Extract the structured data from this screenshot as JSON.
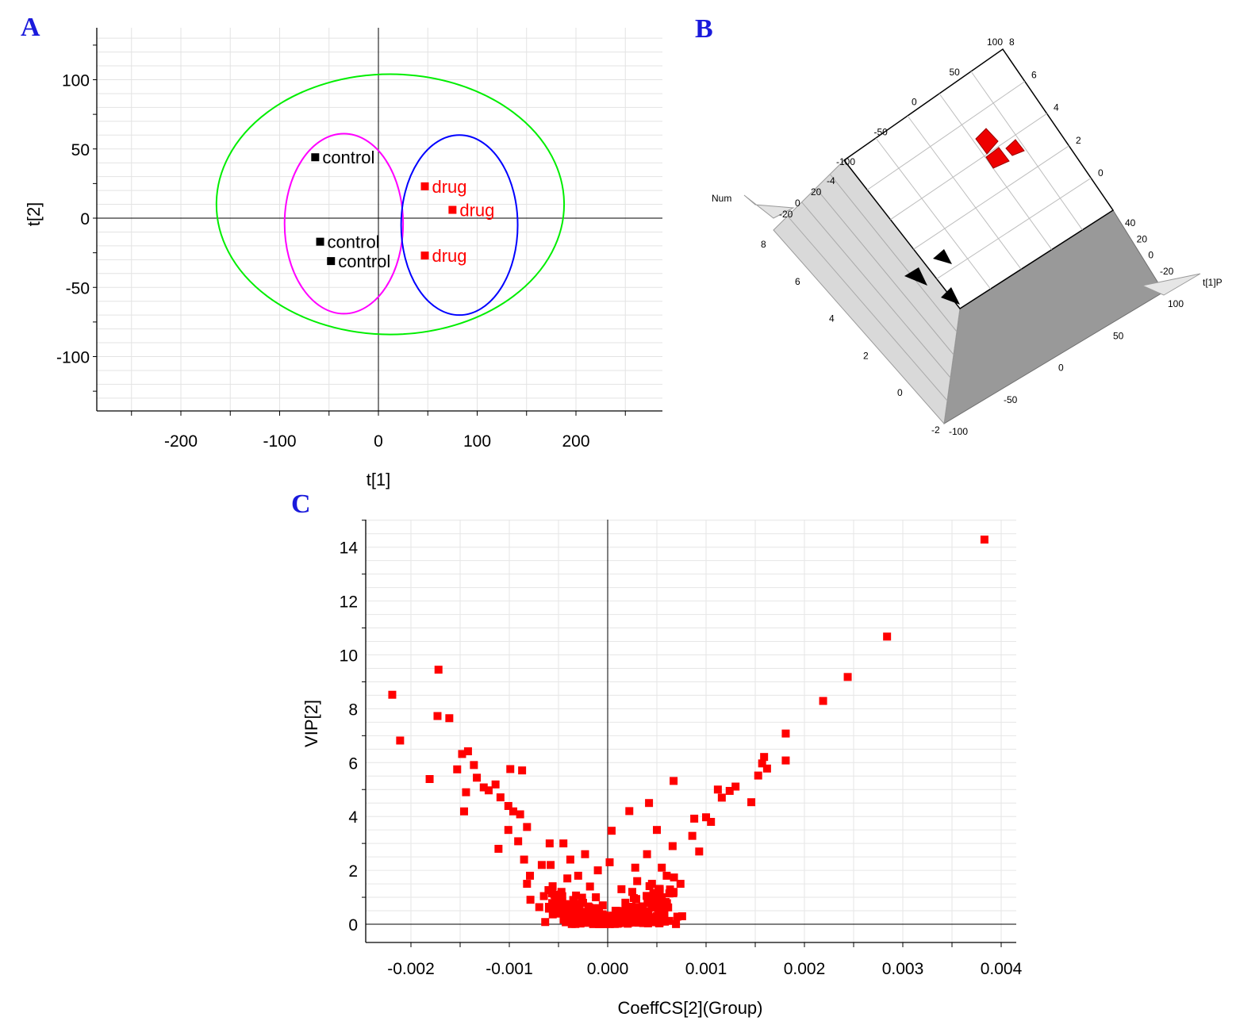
{
  "panels": {
    "a": "A",
    "b": "B",
    "c": "C"
  },
  "chart_data": [
    {
      "panel": "A",
      "type": "scatter",
      "xlabel": "t[1]",
      "ylabel": "t[2]",
      "xlim": [
        -290,
        290
      ],
      "ylim": [
        -138,
        138
      ],
      "xticks": [
        -200,
        -100,
        0,
        100,
        200
      ],
      "yticks": [
        -100,
        -50,
        0,
        50,
        100
      ],
      "grid": true,
      "series": [
        {
          "name": "control",
          "color": "#000000",
          "points": [
            {
              "x": -64,
              "y": 44,
              "label": "control"
            },
            {
              "x": -59,
              "y": -17,
              "label": "control"
            },
            {
              "x": -48,
              "y": -31,
              "label": "control"
            }
          ]
        },
        {
          "name": "drug",
          "color": "#ff0000",
          "points": [
            {
              "x": 47,
              "y": 23,
              "label": "drug"
            },
            {
              "x": 75,
              "y": 6,
              "label": "drug"
            },
            {
              "x": 47,
              "y": -27,
              "label": "drug"
            }
          ]
        }
      ],
      "ellipses": [
        {
          "cx": 12,
          "cy": 10,
          "rx": 176,
          "ry": 94,
          "color": "#00ee00"
        },
        {
          "cx": -35,
          "cy": -4,
          "rx": 60,
          "ry": 65,
          "color": "#ff00ff"
        },
        {
          "cx": 82,
          "cy": -5,
          "rx": 59,
          "ry": 65,
          "color": "#0000ff"
        }
      ]
    },
    {
      "panel": "B",
      "type": "scatter",
      "view": "3d",
      "axes": {
        "x": "t[1]P",
        "z": "Num"
      },
      "tick_labels": {
        "top": [
          "100",
          "50",
          "0",
          "-50",
          "-100"
        ],
        "right_small": [
          "8",
          "6",
          "4",
          "2",
          "0"
        ],
        "right_small2": [
          "40",
          "20",
          "0",
          "-20"
        ],
        "left": [
          "8",
          "6",
          "4",
          "2",
          "0",
          "-2"
        ],
        "bottom": [
          "100",
          "50",
          "0",
          "-50",
          "-100"
        ],
        "misc": [
          "-20",
          "0",
          "20",
          "-4"
        ]
      },
      "groups": [
        {
          "name": "drug",
          "color": "#ff0000",
          "count": 3
        },
        {
          "name": "control",
          "color": "#000000",
          "count": 3
        }
      ]
    },
    {
      "panel": "C",
      "type": "scatter",
      "xlabel": "CoeffCS[2](Group)",
      "ylabel": "VIP[2]",
      "xlim": [
        -0.00244,
        0.00409
      ],
      "ylim": [
        -0.7,
        15.3
      ],
      "xticks": [
        "-0.002",
        "-0.001",
        "0.000",
        "0.001",
        "0.002",
        "0.003",
        "0.004"
      ],
      "yticks": [
        "0",
        "2",
        "4",
        "6",
        "8",
        "10",
        "12",
        "14"
      ],
      "grid": true,
      "color": "#ff0000",
      "points": [
        {
          "x": 0.00383,
          "y": 14.28
        },
        {
          "x": 0.00284,
          "y": 10.68
        },
        {
          "x": 0.00244,
          "y": 9.18
        },
        {
          "x": 0.00219,
          "y": 8.29
        },
        {
          "x": 0.00181,
          "y": 7.08
        },
        {
          "x": 0.00181,
          "y": 6.08
        },
        {
          "x": 0.00159,
          "y": 6.21
        },
        {
          "x": 0.00157,
          "y": 5.97
        },
        {
          "x": 0.00162,
          "y": 5.78
        },
        {
          "x": 0.00153,
          "y": 5.52
        },
        {
          "x": 0.00146,
          "y": 4.53
        },
        {
          "x": 0.0013,
          "y": 5.11
        },
        {
          "x": 0.00124,
          "y": 4.95
        },
        {
          "x": 0.00112,
          "y": 5.0
        },
        {
          "x": 0.00116,
          "y": 4.7
        },
        {
          "x": 0.001,
          "y": 3.97
        },
        {
          "x": 0.00105,
          "y": 3.8
        },
        {
          "x": 0.00088,
          "y": 3.92
        },
        {
          "x": 0.00086,
          "y": 3.28
        },
        {
          "x": 0.00093,
          "y": 2.7
        },
        {
          "x": 0.00067,
          "y": 5.32
        },
        {
          "x": 0.00042,
          "y": 4.5
        },
        {
          "x": 0.00022,
          "y": 4.2
        },
        {
          "x": 4e-05,
          "y": 3.47
        },
        {
          "x": 0.0005,
          "y": 3.5
        },
        {
          "x": 0.00066,
          "y": 2.9
        },
        {
          "x": 0.00055,
          "y": 2.1
        },
        {
          "x": 0.00074,
          "y": 1.5
        },
        {
          "x": 0.00067,
          "y": 1.2
        },
        {
          "x": 0.0005,
          "y": 0.3
        },
        {
          "x": -0.00219,
          "y": 8.52
        },
        {
          "x": -0.00211,
          "y": 6.82
        },
        {
          "x": -0.00172,
          "y": 9.45
        },
        {
          "x": -0.00173,
          "y": 7.73
        },
        {
          "x": -0.00161,
          "y": 7.65
        },
        {
          "x": -0.00181,
          "y": 5.39
        },
        {
          "x": -0.00153,
          "y": 5.75
        },
        {
          "x": -0.00148,
          "y": 6.32
        },
        {
          "x": -0.00142,
          "y": 6.42
        },
        {
          "x": -0.00136,
          "y": 5.91
        },
        {
          "x": -0.00144,
          "y": 4.9
        },
        {
          "x": -0.00133,
          "y": 5.44
        },
        {
          "x": -0.00146,
          "y": 4.19
        },
        {
          "x": -0.00126,
          "y": 5.08
        },
        {
          "x": -0.00121,
          "y": 4.97
        },
        {
          "x": -0.00114,
          "y": 5.19
        },
        {
          "x": -0.00109,
          "y": 4.71
        },
        {
          "x": -0.00099,
          "y": 5.76
        },
        {
          "x": -0.00087,
          "y": 5.71
        },
        {
          "x": -0.00101,
          "y": 4.39
        },
        {
          "x": -0.00096,
          "y": 4.19
        },
        {
          "x": -0.00089,
          "y": 4.08
        },
        {
          "x": -0.00082,
          "y": 3.61
        },
        {
          "x": -0.00091,
          "y": 3.08
        },
        {
          "x": -0.00101,
          "y": 3.5
        },
        {
          "x": -0.00111,
          "y": 2.8
        },
        {
          "x": -0.00085,
          "y": 2.4
        },
        {
          "x": -0.00079,
          "y": 1.8
        },
        {
          "x": -0.00082,
          "y": 1.5
        },
        {
          "x": -0.00067,
          "y": 2.2
        },
        {
          "x": -0.00059,
          "y": 3.0
        },
        {
          "x": -0.00045,
          "y": 3.0
        },
        {
          "x": -0.00023,
          "y": 2.6
        },
        {
          "x": -0.00041,
          "y": 1.7
        },
        {
          "x": -0.00035,
          "y": 0.9
        },
        {
          "x": -0.00047,
          "y": 1.2
        },
        {
          "x": -0.00018,
          "y": 1.4
        },
        {
          "x": -0.00026,
          "y": 0.3
        },
        {
          "x": -0.0001,
          "y": 2.0
        },
        {
          "x": 2e-05,
          "y": 2.3
        },
        {
          "x": 0.0003,
          "y": 1.6
        },
        {
          "x": 0.00018,
          "y": 0.8
        },
        {
          "x": 0.00035,
          "y": 0.6
        },
        {
          "x": 0.0004,
          "y": 2.6
        },
        {
          "x": 0.00025,
          "y": 1.2
        },
        {
          "x": 8e-05,
          "y": 0.5
        },
        {
          "x": -0.00015,
          "y": 0.4
        },
        {
          "x": -0.0003,
          "y": 1.8
        },
        {
          "x": 0.00045,
          "y": 1.5
        },
        {
          "x": 0.00055,
          "y": 1.0
        },
        {
          "x": -0.0002,
          "y": 0.1
        },
        {
          "x": 0.00012,
          "y": 0.1
        },
        {
          "x": -5e-05,
          "y": 0.7
        },
        {
          "x": 0.00014,
          "y": 1.3
        },
        {
          "x": -0.00058,
          "y": 2.2
        },
        {
          "x": 0.00028,
          "y": 2.1
        },
        {
          "x": -0.00038,
          "y": 2.4
        },
        {
          "x": 0.0006,
          "y": 1.8
        },
        {
          "x": 0.00033,
          "y": 0.2
        },
        {
          "x": -0.00012,
          "y": 1.0
        }
      ]
    }
  ]
}
